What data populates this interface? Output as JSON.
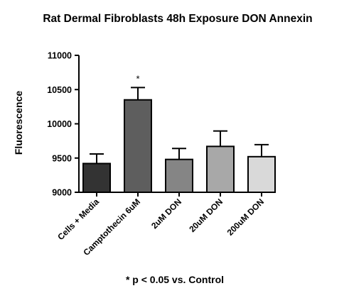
{
  "chart_data": {
    "type": "bar",
    "title": "Rat Dermal Fibroblasts 48h Exposure DON Annexin",
    "xlabel": "",
    "ylabel": "Fluorescence",
    "ylim": [
      9000,
      11000
    ],
    "yticks": [
      9000,
      9500,
      10000,
      10500,
      11000
    ],
    "categories": [
      "Cells + Media",
      "Camptothecin 6uM",
      "2uM DON",
      "20uM DON",
      "200uM DON"
    ],
    "values": [
      9420,
      10350,
      9480,
      9670,
      9520
    ],
    "errors": [
      140,
      180,
      160,
      225,
      175
    ],
    "colors": [
      "#333333",
      "#5e5e5e",
      "#858585",
      "#a8a8a8",
      "#d9d9d9"
    ],
    "annotations": [
      "",
      "*",
      "",
      "",
      ""
    ],
    "footnote": "* p < 0.05 vs. Control",
    "grid": false,
    "legend": "none"
  }
}
